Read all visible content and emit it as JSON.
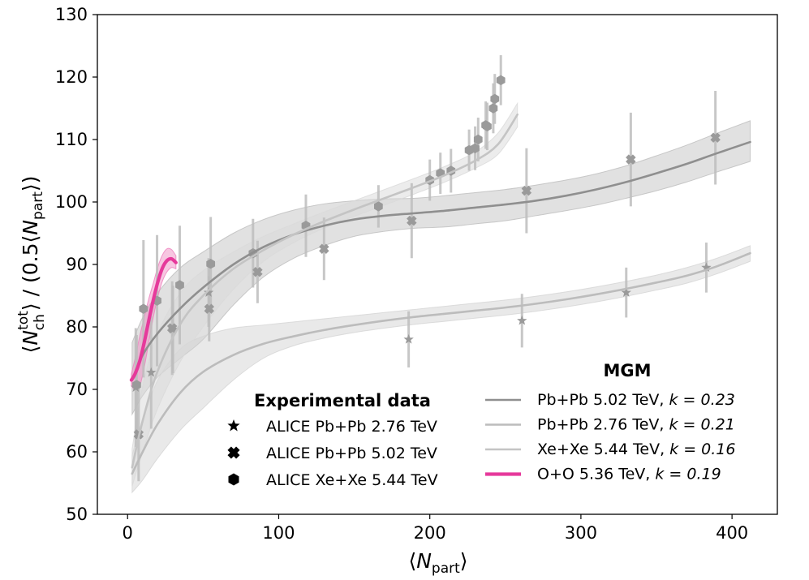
{
  "chart_data": {
    "type": "scatter",
    "xlabel": {
      "main": "N",
      "sub": "part"
    },
    "ylabel": {
      "n_sup": "tot",
      "n_sub": "ch",
      "denom_prefix": "0.5",
      "denom_sub": "part"
    },
    "xlim": [
      -20,
      430
    ],
    "ylim": [
      50,
      130
    ],
    "xticks": [
      0,
      100,
      200,
      300,
      400
    ],
    "yticks": [
      50,
      60,
      70,
      80,
      90,
      100,
      110,
      120,
      130
    ],
    "xtick_labels": [
      "0",
      "100",
      "200",
      "300",
      "400"
    ],
    "ytick_labels": [
      "50",
      "60",
      "70",
      "80",
      "90",
      "100",
      "110",
      "120",
      "130"
    ],
    "experimental_title": "Experimental data",
    "model_title": "MGM",
    "experimental": [
      {
        "name": "ALICE Pb+Pb 2.76 TeV",
        "marker": "star",
        "color": "#9a9a9a",
        "points": [
          {
            "x": 5.4,
            "y": 70.3,
            "err": 9.5
          },
          {
            "x": 15.6,
            "y": 72.7,
            "err": 9.0
          },
          {
            "x": 30,
            "y": 79.6,
            "err": 7.0
          },
          {
            "x": 53.6,
            "y": 85.5,
            "err": 5.5
          },
          {
            "x": 186,
            "y": 78,
            "err": 4.5
          },
          {
            "x": 261,
            "y": 81,
            "err": 4.3
          },
          {
            "x": 330,
            "y": 85.5,
            "err": 4.0
          },
          {
            "x": 383,
            "y": 89.5,
            "err": 4.0
          }
        ]
      },
      {
        "name": "ALICE Pb+Pb 5.02 TeV",
        "marker": "x",
        "color": "#9a9a9a",
        "points": [
          {
            "x": 7.3,
            "y": 62.8,
            "err": 7.5
          },
          {
            "x": 29.5,
            "y": 79.8,
            "err": 7.5
          },
          {
            "x": 54,
            "y": 82.9,
            "err": 5.2
          },
          {
            "x": 86,
            "y": 88.8,
            "err": 5.0
          },
          {
            "x": 130,
            "y": 92.5,
            "err": 5.0
          },
          {
            "x": 188,
            "y": 97,
            "err": 6.0
          },
          {
            "x": 264,
            "y": 101.8,
            "err": 6.8
          },
          {
            "x": 333,
            "y": 106.8,
            "err": 7.5
          },
          {
            "x": 389,
            "y": 110.3,
            "err": 7.5
          }
        ]
      },
      {
        "name": "ALICE Xe+Xe 5.44 TeV",
        "marker": "hexagon",
        "color": "#9a9a9a",
        "points": [
          {
            "x": 6,
            "y": 70.7,
            "err": 8.0
          },
          {
            "x": 10.5,
            "y": 82.9,
            "err": 11.0
          },
          {
            "x": 19.5,
            "y": 84.2,
            "err": 10.5
          },
          {
            "x": 34.5,
            "y": 86.7,
            "err": 9.5
          },
          {
            "x": 55,
            "y": 90.1,
            "err": 7.5
          },
          {
            "x": 83,
            "y": 91.8,
            "err": 5.5
          },
          {
            "x": 118,
            "y": 96.2,
            "err": 5.0
          },
          {
            "x": 166,
            "y": 99.3,
            "err": 3.4
          },
          {
            "x": 200,
            "y": 103.5,
            "err": 3.3
          },
          {
            "x": 207,
            "y": 104.6,
            "err": 3.3
          },
          {
            "x": 214,
            "y": 105,
            "err": 3.5
          },
          {
            "x": 226,
            "y": 108.3,
            "err": 3.3
          },
          {
            "x": 230,
            "y": 108.6,
            "err": 3.5
          },
          {
            "x": 232,
            "y": 110,
            "err": 3.5
          },
          {
            "x": 237,
            "y": 112.3,
            "err": 3.8
          },
          {
            "x": 238,
            "y": 112.1,
            "err": 3.8
          },
          {
            "x": 242,
            "y": 115,
            "err": 4.0
          },
          {
            "x": 243,
            "y": 116.5,
            "err": 4.0
          },
          {
            "x": 247,
            "y": 119.5,
            "err": 4.0
          }
        ]
      }
    ],
    "models": [
      {
        "name": "Pb+Pb 5.02 TeV, ",
        "k_label": "k = 0.23",
        "color": "#8f8f8f",
        "band_color": "#bdbdbd",
        "band_opacity": 0.45,
        "line_width": 2.6,
        "x": [
          3,
          10,
          20,
          35,
          50,
          70,
          90,
          110,
          130,
          150,
          170,
          190,
          210,
          230,
          250,
          270,
          290,
          310,
          330,
          350,
          370,
          390,
          412
        ],
        "y": [
          71.5,
          75.5,
          79.0,
          83.0,
          86.3,
          90.0,
          92.8,
          94.8,
          96.2,
          97.2,
          97.8,
          98.2,
          98.6,
          99.1,
          99.6,
          100.2,
          101.0,
          102.0,
          103.2,
          104.6,
          106.1,
          107.8,
          109.6
        ],
        "lo": [
          66.0,
          69.0,
          72.0,
          75.0,
          78.0,
          83.5,
          88.0,
          91.0,
          93.0,
          94.5,
          95.3,
          95.8,
          96.0,
          96.5,
          97.0,
          97.8,
          98.6,
          99.5,
          100.6,
          101.8,
          103.2,
          104.8,
          106.5
        ],
        "hi": [
          77.5,
          81.5,
          85.5,
          89.5,
          92.0,
          95.0,
          97.2,
          98.7,
          99.7,
          100.2,
          100.5,
          100.6,
          101.0,
          101.5,
          102.0,
          102.7,
          103.5,
          104.5,
          105.8,
          107.4,
          109.1,
          111.0,
          113.0
        ]
      },
      {
        "name": "Pb+Pb 2.76 TeV, ",
        "k_label": "k = 0.21",
        "color": "#bcbcbc",
        "band_color": "#d4d4d4",
        "band_opacity": 0.5,
        "line_width": 2.6,
        "x": [
          3,
          10,
          20,
          35,
          50,
          70,
          90,
          110,
          130,
          150,
          170,
          190,
          210,
          230,
          250,
          270,
          290,
          310,
          330,
          350,
          370,
          390,
          412
        ],
        "y": [
          56.5,
          60.0,
          64.5,
          69.5,
          72.8,
          75.5,
          77.3,
          78.5,
          79.5,
          80.3,
          81.0,
          81.6,
          82.1,
          82.6,
          83.1,
          83.7,
          84.4,
          85.2,
          86.1,
          87.1,
          88.2,
          89.7,
          91.8
        ],
        "lo": [
          53.5,
          55.5,
          59.0,
          63.5,
          67.0,
          71.5,
          75.0,
          77.0,
          78.2,
          79.1,
          79.8,
          80.4,
          80.9,
          81.4,
          81.9,
          82.5,
          83.2,
          84.0,
          84.9,
          85.9,
          87.0,
          88.5,
          90.5
        ],
        "hi": [
          59.5,
          65.0,
          71.5,
          76.5,
          78.5,
          79.8,
          80.3,
          80.8,
          81.3,
          81.8,
          82.3,
          82.8,
          83.3,
          83.8,
          84.3,
          84.9,
          85.6,
          86.4,
          87.3,
          88.3,
          89.5,
          91.0,
          93.0
        ]
      },
      {
        "name": "Xe+Xe 5.44 TeV, ",
        "k_label": "k = 0.16",
        "color": "#c4c4c4",
        "band_color": "#d9d9d9",
        "band_opacity": 0.5,
        "line_width": 2.6,
        "x": [
          3,
          10,
          20,
          35,
          50,
          70,
          90,
          110,
          130,
          150,
          170,
          190,
          210,
          230,
          245,
          258
        ],
        "y": [
          57.5,
          65.0,
          73.0,
          80.5,
          85.0,
          89.3,
          92.3,
          94.8,
          96.9,
          98.8,
          100.6,
          102.4,
          104.3,
          106.6,
          109.2,
          114.0
        ],
        "lo": [
          54.5,
          60.0,
          67.0,
          74.5,
          80.0,
          86.0,
          90.5,
          93.5,
          95.8,
          97.7,
          99.5,
          101.3,
          103.2,
          105.4,
          107.6,
          112.0
        ],
        "hi": [
          60.5,
          70.5,
          79.0,
          85.5,
          89.0,
          92.0,
          94.5,
          96.5,
          98.4,
          100.2,
          102.0,
          103.8,
          105.7,
          108.0,
          111.0,
          115.8
        ]
      },
      {
        "name": "O+O 5.36 TeV, ",
        "k_label": "k = 0.19",
        "color": "#e6399b",
        "band_color": "#ee80bd",
        "band_opacity": 0.45,
        "line_width": 4.2,
        "x": [
          2.5,
          5,
          8,
          11,
          14,
          17,
          20,
          23,
          26,
          29,
          32
        ],
        "y": [
          71.5,
          72.5,
          74.5,
          77.5,
          81.0,
          84.3,
          87.2,
          89.4,
          90.6,
          90.9,
          90.3
        ],
        "lo": [
          70.5,
          70.0,
          70.5,
          73.5,
          77.5,
          81.5,
          84.8,
          87.3,
          88.8,
          89.5,
          89.3
        ],
        "hi": [
          72.5,
          75.0,
          78.5,
          81.5,
          84.5,
          87.0,
          89.6,
          91.5,
          92.5,
          92.4,
          91.4
        ]
      }
    ]
  }
}
